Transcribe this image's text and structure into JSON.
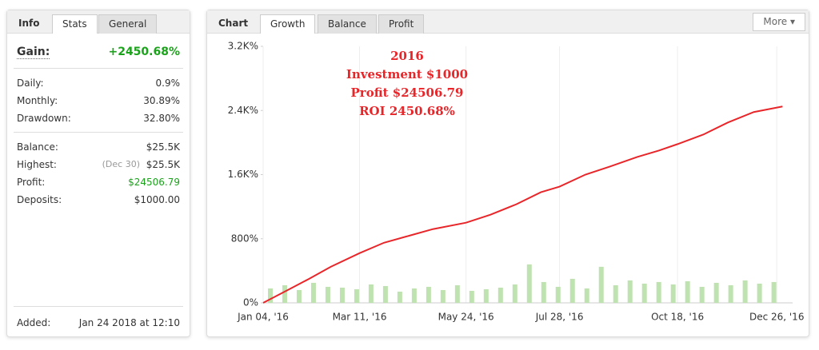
{
  "info_panel": {
    "tabs": [
      "Info",
      "Stats",
      "General"
    ],
    "gain_label": "Gain:",
    "gain_value": "+2450.68%",
    "rows": [
      [
        "Daily:",
        "0.9%"
      ],
      [
        "Monthly:",
        "30.89%"
      ],
      [
        "Drawdown:",
        "32.80%"
      ]
    ],
    "balance_rows": [
      [
        "Balance:",
        "$25.5K"
      ],
      [
        "Highest:",
        "$25.5K"
      ],
      [
        "Profit:",
        "$24506.79"
      ],
      [
        "Deposits:",
        "$1000.00"
      ]
    ],
    "highest_date": "(Dec 30)",
    "added_label": "Added:",
    "added_value": "Jan 24 2018 at 12:10"
  },
  "chart_panel": {
    "tabs": [
      "Chart",
      "Growth",
      "Balance",
      "Profit"
    ],
    "more": "More"
  },
  "chart_data": {
    "type": "line",
    "annotations": [
      "2016",
      "Investment $1000",
      "Profit $24506.79",
      "ROI 2450.68%"
    ],
    "xlim": [
      "2016-01-04",
      "2017-01-06"
    ],
    "xticks": [
      {
        "value": "2016-01-04",
        "label": "Jan 04, '16"
      },
      {
        "value": "2016-03-11",
        "label": "Mar 11, '16"
      },
      {
        "value": "2016-05-24",
        "label": "May 24, '16"
      },
      {
        "value": "2016-07-28",
        "label": "Jul 28, '16"
      },
      {
        "value": "2016-10-18",
        "label": "Oct 18, '16"
      },
      {
        "value": "2016-12-26",
        "label": "Dec 26, '16"
      }
    ],
    "ylim": [
      0,
      3200
    ],
    "yticks": [
      {
        "value": 0,
        "label": "0%"
      },
      {
        "value": 800,
        "label": "800%"
      },
      {
        "value": 1600,
        "label": "1.6K%"
      },
      {
        "value": 2400,
        "label": "2.4K%"
      },
      {
        "value": 3200,
        "label": "3.2K%"
      }
    ],
    "grid": true,
    "series": [
      {
        "type": "bar",
        "color": "#bfe3b0",
        "x": [
          "2016-01-09",
          "2016-01-19",
          "2016-01-29",
          "2016-02-08",
          "2016-02-18",
          "2016-02-28",
          "2016-03-09",
          "2016-03-19",
          "2016-03-29",
          "2016-04-08",
          "2016-04-18",
          "2016-04-28",
          "2016-05-08",
          "2016-05-18",
          "2016-05-28",
          "2016-06-07",
          "2016-06-17",
          "2016-06-27",
          "2016-07-07",
          "2016-07-17",
          "2016-07-27",
          "2016-08-06",
          "2016-08-16",
          "2016-08-26",
          "2016-09-05",
          "2016-09-15",
          "2016-09-25",
          "2016-10-05",
          "2016-10-15",
          "2016-10-25",
          "2016-11-04",
          "2016-11-14",
          "2016-11-24",
          "2016-12-04",
          "2016-12-14",
          "2016-12-24"
        ],
        "values": [
          180,
          220,
          160,
          250,
          200,
          190,
          170,
          230,
          210,
          140,
          180,
          200,
          160,
          220,
          150,
          170,
          190,
          230,
          480,
          260,
          200,
          300,
          180,
          450,
          220,
          280,
          240,
          260,
          230,
          270,
          200,
          250,
          220,
          280,
          240,
          260
        ]
      },
      {
        "type": "line",
        "color": "#e8262a",
        "x": [
          "2016-01-04",
          "2016-01-20",
          "2016-02-05",
          "2016-02-20",
          "2016-03-11",
          "2016-03-28",
          "2016-04-15",
          "2016-05-01",
          "2016-05-24",
          "2016-06-10",
          "2016-06-28",
          "2016-07-15",
          "2016-07-28",
          "2016-08-15",
          "2016-09-01",
          "2016-09-20",
          "2016-10-05",
          "2016-10-18",
          "2016-11-05",
          "2016-11-22",
          "2016-12-10",
          "2016-12-30"
        ],
        "values": [
          0,
          150,
          300,
          450,
          620,
          750,
          840,
          920,
          1000,
          1100,
          1230,
          1380,
          1450,
          1600,
          1700,
          1820,
          1900,
          1980,
          2100,
          2250,
          2380,
          2450
        ]
      }
    ]
  }
}
